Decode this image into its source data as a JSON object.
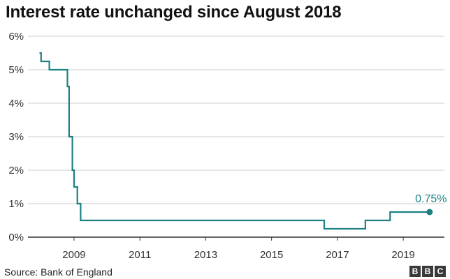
{
  "header": {
    "title": "Interest rate unchanged since August 2018"
  },
  "footer": {
    "source": "Source: Bank of England",
    "logo": [
      "B",
      "B",
      "C"
    ]
  },
  "colors": {
    "line": "#1b8182",
    "grid": "#cccccc",
    "axis": "#333333",
    "label": "#1b8182"
  },
  "chart_data": {
    "type": "line",
    "title": "Interest rate unchanged since August 2018",
    "xlabel": "",
    "ylabel": "",
    "xlim": [
      2007.6,
      2020.25
    ],
    "ylim": [
      0,
      6
    ],
    "grid": true,
    "yticks": [
      0,
      1,
      2,
      3,
      4,
      5,
      6
    ],
    "ytick_labels": [
      "0%",
      "1%",
      "2%",
      "3%",
      "4%",
      "5%",
      "6%"
    ],
    "xticks": [
      2009,
      2011,
      2013,
      2015,
      2017,
      2019
    ],
    "xtick_labels": [
      "2009",
      "2011",
      "2013",
      "2015",
      "2017",
      "2019"
    ],
    "series": [
      {
        "step": true,
        "points": [
          [
            2007.95,
            5.5
          ],
          [
            2008.0,
            5.25
          ],
          [
            2008.25,
            5.0
          ],
          [
            2008.8,
            4.5
          ],
          [
            2008.85,
            3.0
          ],
          [
            2008.95,
            2.0
          ],
          [
            2009.0,
            1.5
          ],
          [
            2009.1,
            1.0
          ],
          [
            2009.2,
            0.5
          ],
          [
            2016.6,
            0.25
          ],
          [
            2017.85,
            0.5
          ],
          [
            2018.6,
            0.75
          ],
          [
            2019.8,
            0.75
          ]
        ]
      }
    ],
    "annotations": [
      {
        "text": "0.75%",
        "x": 2019.8,
        "y": 0.75
      }
    ]
  }
}
